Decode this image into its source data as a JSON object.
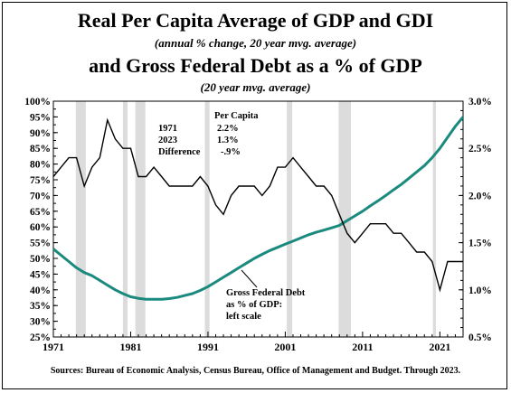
{
  "title_line1": "Real Per Capita Average of GDP and GDI",
  "subtitle_line1": "(annual % change, 20 year mvg. average)",
  "title_line2": "and Gross Federal Debt as a % of GDP",
  "subtitle_line2": "(20 year mvg. average)",
  "source": "Sources: Bureau of Economic Analysis, Census Bureau, Office of Management and Budget. Through 2023.",
  "colors": {
    "gdp_line": "#000000",
    "debt_line": "#1b8a7e",
    "recession": "#dcdcdc"
  },
  "chart_data": {
    "type": "line",
    "x_range": [
      1971,
      2024
    ],
    "x_ticks": [
      1971,
      1981,
      1991,
      2001,
      2011,
      2021
    ],
    "left_axis": {
      "range": [
        25,
        100
      ],
      "ticks": [
        25,
        30,
        35,
        40,
        45,
        50,
        55,
        60,
        65,
        70,
        75,
        80,
        85,
        90,
        95,
        100
      ],
      "format": "%"
    },
    "right_axis": {
      "range": [
        0.5,
        3.0
      ],
      "ticks": [
        0.5,
        1.0,
        1.5,
        2.0,
        2.5,
        3.0
      ],
      "format": "%",
      "decimals": 1
    },
    "recessions": [
      [
        1973.9,
        1975.2
      ],
      [
        1980.0,
        1980.6
      ],
      [
        1981.6,
        1982.9
      ],
      [
        1990.6,
        1991.2
      ],
      [
        2001.2,
        2001.9
      ],
      [
        2007.9,
        2009.5
      ],
      [
        2020.1,
        2020.5
      ]
    ],
    "series": [
      {
        "axis": "right",
        "points": [
          [
            1971,
            2.2
          ],
          [
            1972,
            2.3
          ],
          [
            1973,
            2.4
          ],
          [
            1974,
            2.4
          ],
          [
            1975,
            2.1
          ],
          [
            1976,
            2.3
          ],
          [
            1977,
            2.4
          ],
          [
            1978,
            2.8
          ],
          [
            1979,
            2.6
          ],
          [
            1980,
            2.5
          ],
          [
            1981,
            2.5
          ],
          [
            1982,
            2.2
          ],
          [
            1983,
            2.2
          ],
          [
            1984,
            2.3
          ],
          [
            1985,
            2.2
          ],
          [
            1986,
            2.1
          ],
          [
            1987,
            2.1
          ],
          [
            1988,
            2.1
          ],
          [
            1989,
            2.1
          ],
          [
            1990,
            2.2
          ],
          [
            1991,
            2.1
          ],
          [
            1992,
            1.9
          ],
          [
            1993,
            1.8
          ],
          [
            1994,
            2.0
          ],
          [
            1995,
            2.1
          ],
          [
            1996,
            2.1
          ],
          [
            1997,
            2.1
          ],
          [
            1998,
            2.0
          ],
          [
            1999,
            2.1
          ],
          [
            2000,
            2.3
          ],
          [
            2001,
            2.3
          ],
          [
            2002,
            2.4
          ],
          [
            2003,
            2.3
          ],
          [
            2004,
            2.2
          ],
          [
            2005,
            2.1
          ],
          [
            2006,
            2.1
          ],
          [
            2007,
            2.0
          ],
          [
            2008,
            1.8
          ],
          [
            2009,
            1.6
          ],
          [
            2010,
            1.5
          ],
          [
            2011,
            1.6
          ],
          [
            2012,
            1.7
          ],
          [
            2013,
            1.7
          ],
          [
            2014,
            1.7
          ],
          [
            2015,
            1.6
          ],
          [
            2016,
            1.6
          ],
          [
            2017,
            1.5
          ],
          [
            2018,
            1.4
          ],
          [
            2019,
            1.4
          ],
          [
            2020,
            1.3
          ],
          [
            2021,
            1.0
          ],
          [
            2022,
            1.3
          ],
          [
            2023,
            1.3
          ],
          [
            2024,
            1.3
          ]
        ]
      },
      {
        "axis": "left",
        "points": [
          [
            1971,
            53
          ],
          [
            1972,
            51
          ],
          [
            1973,
            49
          ],
          [
            1974,
            47
          ],
          [
            1975,
            45.5
          ],
          [
            1976,
            44.5
          ],
          [
            1977,
            43
          ],
          [
            1978,
            41.5
          ],
          [
            1979,
            40
          ],
          [
            1980,
            38.8
          ],
          [
            1981,
            37.8
          ],
          [
            1982,
            37.3
          ],
          [
            1983,
            37.0
          ],
          [
            1984,
            37.0
          ],
          [
            1985,
            37.0
          ],
          [
            1986,
            37.2
          ],
          [
            1987,
            37.6
          ],
          [
            1988,
            38.2
          ],
          [
            1989,
            38.8
          ],
          [
            1990,
            39.8
          ],
          [
            1991,
            41
          ],
          [
            1992,
            42.5
          ],
          [
            1993,
            44
          ],
          [
            1994,
            45.5
          ],
          [
            1995,
            47
          ],
          [
            1996,
            48.5
          ],
          [
            1997,
            50
          ],
          [
            1998,
            51.3
          ],
          [
            1999,
            52.5
          ],
          [
            2000,
            53.5
          ],
          [
            2001,
            54.5
          ],
          [
            2002,
            55.5
          ],
          [
            2003,
            56.5
          ],
          [
            2004,
            57.5
          ],
          [
            2005,
            58.3
          ],
          [
            2006,
            59
          ],
          [
            2007,
            59.7
          ],
          [
            2008,
            60.5
          ],
          [
            2009,
            62
          ],
          [
            2010,
            63.5
          ],
          [
            2011,
            65
          ],
          [
            2012,
            66.7
          ],
          [
            2013,
            68.3
          ],
          [
            2014,
            70
          ],
          [
            2015,
            71.8
          ],
          [
            2016,
            73.5
          ],
          [
            2017,
            75.5
          ],
          [
            2018,
            77.5
          ],
          [
            2019,
            79.5
          ],
          [
            2020,
            82
          ],
          [
            2021,
            85
          ],
          [
            2022,
            88.5
          ],
          [
            2023,
            92
          ],
          [
            2024,
            95
          ]
        ]
      }
    ]
  },
  "annotations": {
    "per_capita_header": "Per Capita",
    "row1_label": "1971",
    "row1_value": "2.2%",
    "row2_label": "2023",
    "row2_value": "1.3%",
    "row3_label": "Difference",
    "row3_value": "-.9%",
    "debt_label": [
      "Gross Federal Debt",
      "as % of GDP:",
      "left scale"
    ]
  }
}
